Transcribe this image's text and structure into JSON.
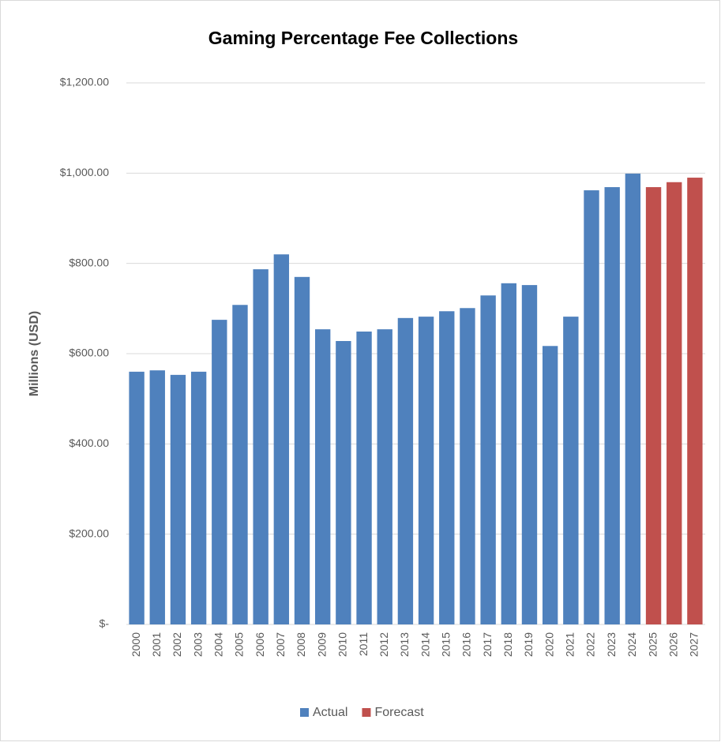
{
  "chart_data": {
    "type": "bar",
    "title": "Gaming Percentage Fee Collections",
    "y_label": "Millions (USD)",
    "categories": [
      "2000",
      "2001",
      "2002",
      "2003",
      "2004",
      "2005",
      "2006",
      "2007",
      "2008",
      "2009",
      "2010",
      "2011",
      "2012",
      "2013",
      "2014",
      "2015",
      "2016",
      "2017",
      "2018",
      "2019",
      "2020",
      "2021",
      "2022",
      "2023",
      "2024",
      "2025",
      "2026",
      "2027"
    ],
    "series": [
      {
        "name": "Actual",
        "color": "#4f81bd",
        "values": [
          560,
          563,
          553,
          560,
          675,
          708,
          787,
          820,
          770,
          654,
          628,
          649,
          654,
          679,
          682,
          694,
          701,
          729,
          756,
          752,
          617,
          682,
          962,
          969,
          999,
          null,
          null,
          null
        ]
      },
      {
        "name": "Forecast",
        "color": "#c0504d",
        "values": [
          null,
          null,
          null,
          null,
          null,
          null,
          null,
          null,
          null,
          null,
          null,
          null,
          null,
          null,
          null,
          null,
          null,
          null,
          null,
          null,
          null,
          null,
          null,
          null,
          null,
          969,
          980,
          990
        ]
      }
    ],
    "ylim": [
      0,
      1200
    ],
    "yticks": [
      {
        "value": 0,
        "label": "$-"
      },
      {
        "value": 200,
        "label": "$200.00"
      },
      {
        "value": 400,
        "label": "$400.00"
      },
      {
        "value": 600,
        "label": "$600.00"
      },
      {
        "value": 800,
        "label": "$800.00"
      },
      {
        "value": 1000,
        "label": "$1,000.00"
      },
      {
        "value": 1200,
        "label": "$1,200.00"
      }
    ],
    "grid": true,
    "legend": "bottom"
  }
}
